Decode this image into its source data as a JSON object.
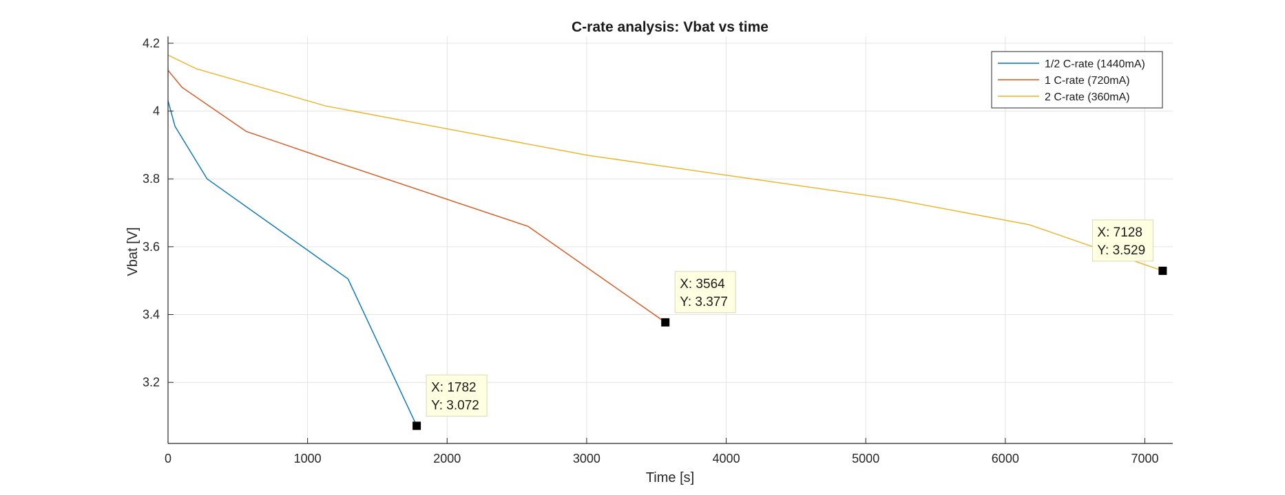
{
  "chart_data": {
    "type": "line",
    "title": "C-rate analysis: Vbat vs time",
    "xlabel": "Time [s]",
    "ylabel": "Vbat [V]",
    "xlim": [
      0,
      7200
    ],
    "ylim": [
      3.02,
      4.22
    ],
    "xticks": [
      0,
      1000,
      2000,
      3000,
      4000,
      5000,
      6000,
      7000
    ],
    "xtick_labels": [
      "0",
      "1000",
      "2000",
      "3000",
      "4000",
      "5000",
      "6000",
      "7000"
    ],
    "yticks": [
      3.2,
      3.4,
      3.6,
      3.8,
      4.0,
      4.2
    ],
    "ytick_labels": [
      "3.2",
      "3.4",
      "3.6",
      "3.8",
      "4",
      "4.2"
    ],
    "grid": true,
    "legend_position": "top-right",
    "series": [
      {
        "name": "1/2 C-rate (1440mA)",
        "color": "#0072BD",
        "x": [
          0,
          50,
          280,
          1290,
          1782
        ],
        "y": [
          4.03,
          3.955,
          3.8,
          3.505,
          3.072
        ]
      },
      {
        "name": "1 C-rate (720mA)",
        "color": "#D95319",
        "x": [
          0,
          100,
          560,
          1200,
          2580,
          3564
        ],
        "y": [
          4.12,
          4.07,
          3.94,
          3.85,
          3.66,
          3.377
        ]
      },
      {
        "name": "2 C-rate (360mA)",
        "color": "#EDB120",
        "x": [
          0,
          200,
          1130,
          3000,
          5200,
          6170,
          7128
        ],
        "y": [
          4.165,
          4.125,
          4.015,
          3.87,
          3.74,
          3.665,
          3.529
        ]
      }
    ],
    "datatips": [
      {
        "series": 0,
        "x": 1782,
        "y": 3.072,
        "x_text": "X: 1782",
        "y_text": "Y: 3.072"
      },
      {
        "series": 1,
        "x": 3564,
        "y": 3.377,
        "x_text": "X: 3564",
        "y_text": "Y: 3.377"
      },
      {
        "series": 2,
        "x": 7128,
        "y": 3.529,
        "x_text": "X: 7128",
        "y_text": "Y: 3.529"
      }
    ]
  }
}
